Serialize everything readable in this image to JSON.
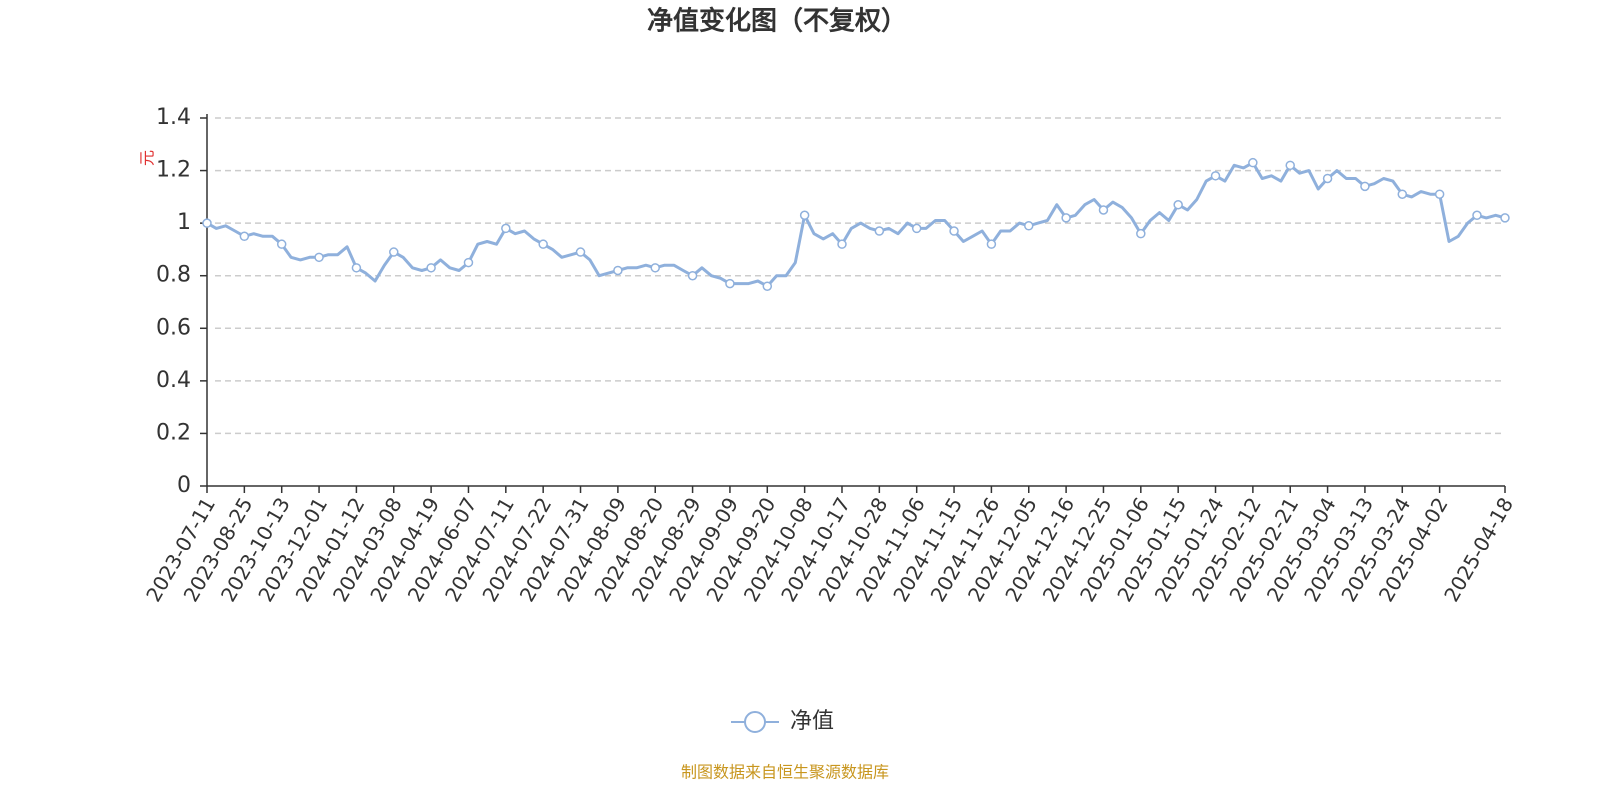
{
  "chart_data": {
    "type": "line",
    "title": "净值变化图（不复权）",
    "y_label": "元",
    "categories": [
      "2023-07-11",
      null,
      null,
      null,
      "2023-08-25",
      null,
      null,
      null,
      "2023-10-13",
      null,
      null,
      null,
      "2023-12-01",
      null,
      null,
      null,
      "2024-01-12",
      null,
      null,
      null,
      "2024-03-08",
      null,
      null,
      null,
      "2024-04-19",
      null,
      null,
      null,
      "2024-06-07",
      null,
      null,
      null,
      "2024-07-11",
      null,
      null,
      null,
      "2024-07-22",
      null,
      null,
      null,
      "2024-07-31",
      null,
      null,
      null,
      "2024-08-09",
      null,
      null,
      null,
      "2024-08-20",
      null,
      null,
      null,
      "2024-08-29",
      null,
      null,
      null,
      "2024-09-09",
      null,
      null,
      null,
      "2024-09-20",
      null,
      null,
      null,
      "2024-10-08",
      null,
      null,
      null,
      "2024-10-17",
      null,
      null,
      null,
      "2024-10-28",
      null,
      null,
      null,
      "2024-11-06",
      null,
      null,
      null,
      "2024-11-15",
      null,
      null,
      null,
      "2024-11-26",
      null,
      null,
      null,
      "2024-12-05",
      null,
      null,
      null,
      "2024-12-16",
      null,
      null,
      null,
      "2024-12-25",
      null,
      null,
      null,
      "2025-01-06",
      null,
      null,
      null,
      "2025-01-15",
      null,
      null,
      null,
      "2025-01-24",
      null,
      null,
      null,
      "2025-02-12",
      null,
      null,
      null,
      "2025-02-21",
      null,
      null,
      null,
      "2025-03-04",
      null,
      null,
      null,
      "2025-03-13",
      null,
      null,
      null,
      "2025-03-24",
      null,
      null,
      null,
      "2025-04-02",
      null,
      null,
      null,
      null,
      null,
      null,
      "2025-04-18"
    ],
    "series": [
      {
        "name": "净值",
        "color": "#8fb0dc",
        "values": [
          1.0,
          0.98,
          0.99,
          0.97,
          0.95,
          0.96,
          0.95,
          0.95,
          0.92,
          0.87,
          0.86,
          0.87,
          0.87,
          0.88,
          0.88,
          0.91,
          0.83,
          0.81,
          0.78,
          0.84,
          0.89,
          0.87,
          0.83,
          0.82,
          0.83,
          0.86,
          0.83,
          0.82,
          0.85,
          0.92,
          0.93,
          0.92,
          0.98,
          0.96,
          0.97,
          0.94,
          0.92,
          0.9,
          0.87,
          0.88,
          0.89,
          0.86,
          0.8,
          0.81,
          0.82,
          0.83,
          0.83,
          0.84,
          0.83,
          0.84,
          0.84,
          0.82,
          0.8,
          0.83,
          0.8,
          0.79,
          0.77,
          0.77,
          0.77,
          0.78,
          0.76,
          0.8,
          0.8,
          0.85,
          1.03,
          0.96,
          0.94,
          0.96,
          0.92,
          0.98,
          1.0,
          0.98,
          0.97,
          0.98,
          0.96,
          1.0,
          0.98,
          0.98,
          1.01,
          1.01,
          0.97,
          0.93,
          0.95,
          0.97,
          0.92,
          0.97,
          0.97,
          1.0,
          0.99,
          1.0,
          1.01,
          1.07,
          1.02,
          1.03,
          1.07,
          1.09,
          1.05,
          1.08,
          1.06,
          1.02,
          0.96,
          1.01,
          1.04,
          1.01,
          1.07,
          1.05,
          1.09,
          1.16,
          1.18,
          1.16,
          1.22,
          1.21,
          1.23,
          1.17,
          1.18,
          1.16,
          1.22,
          1.19,
          1.2,
          1.13,
          1.17,
          1.2,
          1.17,
          1.17,
          1.14,
          1.15,
          1.17,
          1.16,
          1.11,
          1.1,
          1.12,
          1.11,
          1.11,
          0.93,
          0.95,
          1.0,
          1.03,
          1.02,
          1.03,
          1.02
        ]
      }
    ],
    "ylim": [
      0,
      1.4
    ],
    "yticks": [
      0,
      0.2,
      0.4,
      0.6,
      0.8,
      1,
      1.2,
      1.4
    ],
    "grid": true,
    "legend": "bottom",
    "source": "制图数据来自恒生聚源数据库"
  }
}
